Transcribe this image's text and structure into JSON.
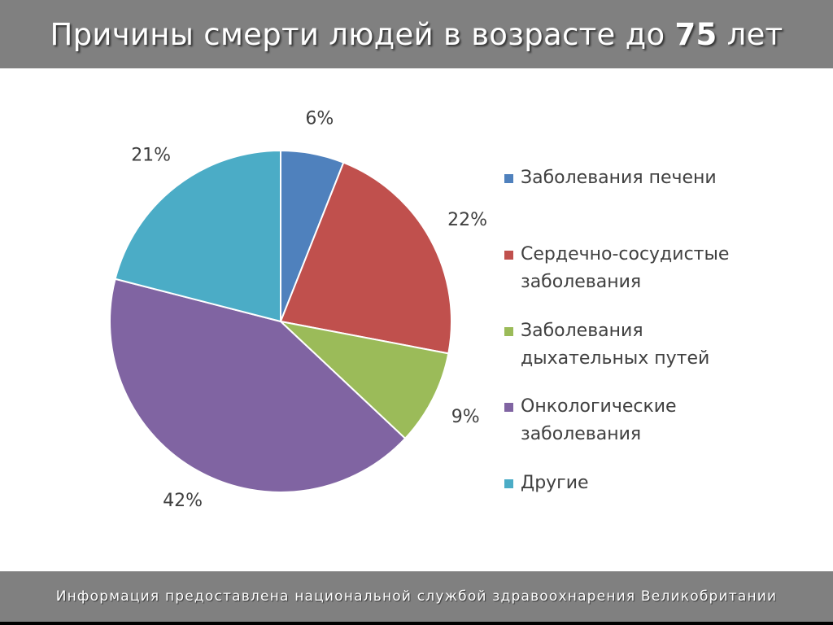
{
  "header": {
    "title_prefix": "Причины смерти людей в возрасте до ",
    "title_bold": "75",
    "title_suffix": " лет"
  },
  "footer": {
    "text": "Информация предоставлена национальной службой здравоохнарения Великобритании"
  },
  "chart_data": {
    "type": "pie",
    "title": "Причины смерти людей в возрасте до 75 лет",
    "legend_position": "right",
    "categories": [
      "Заболевания печени",
      "Сердечно-сосудистые заболевания",
      "Заболевания дыхательных путей",
      "Онкологические заболевания",
      "Другие"
    ],
    "values": [
      6,
      22,
      9,
      42,
      21
    ],
    "labels": [
      "6%",
      "22%",
      "9%",
      "42%",
      "21%"
    ],
    "colors": [
      "#4F81BD",
      "#C0504D",
      "#9BBB59",
      "#8064A2",
      "#4BACC6"
    ]
  }
}
